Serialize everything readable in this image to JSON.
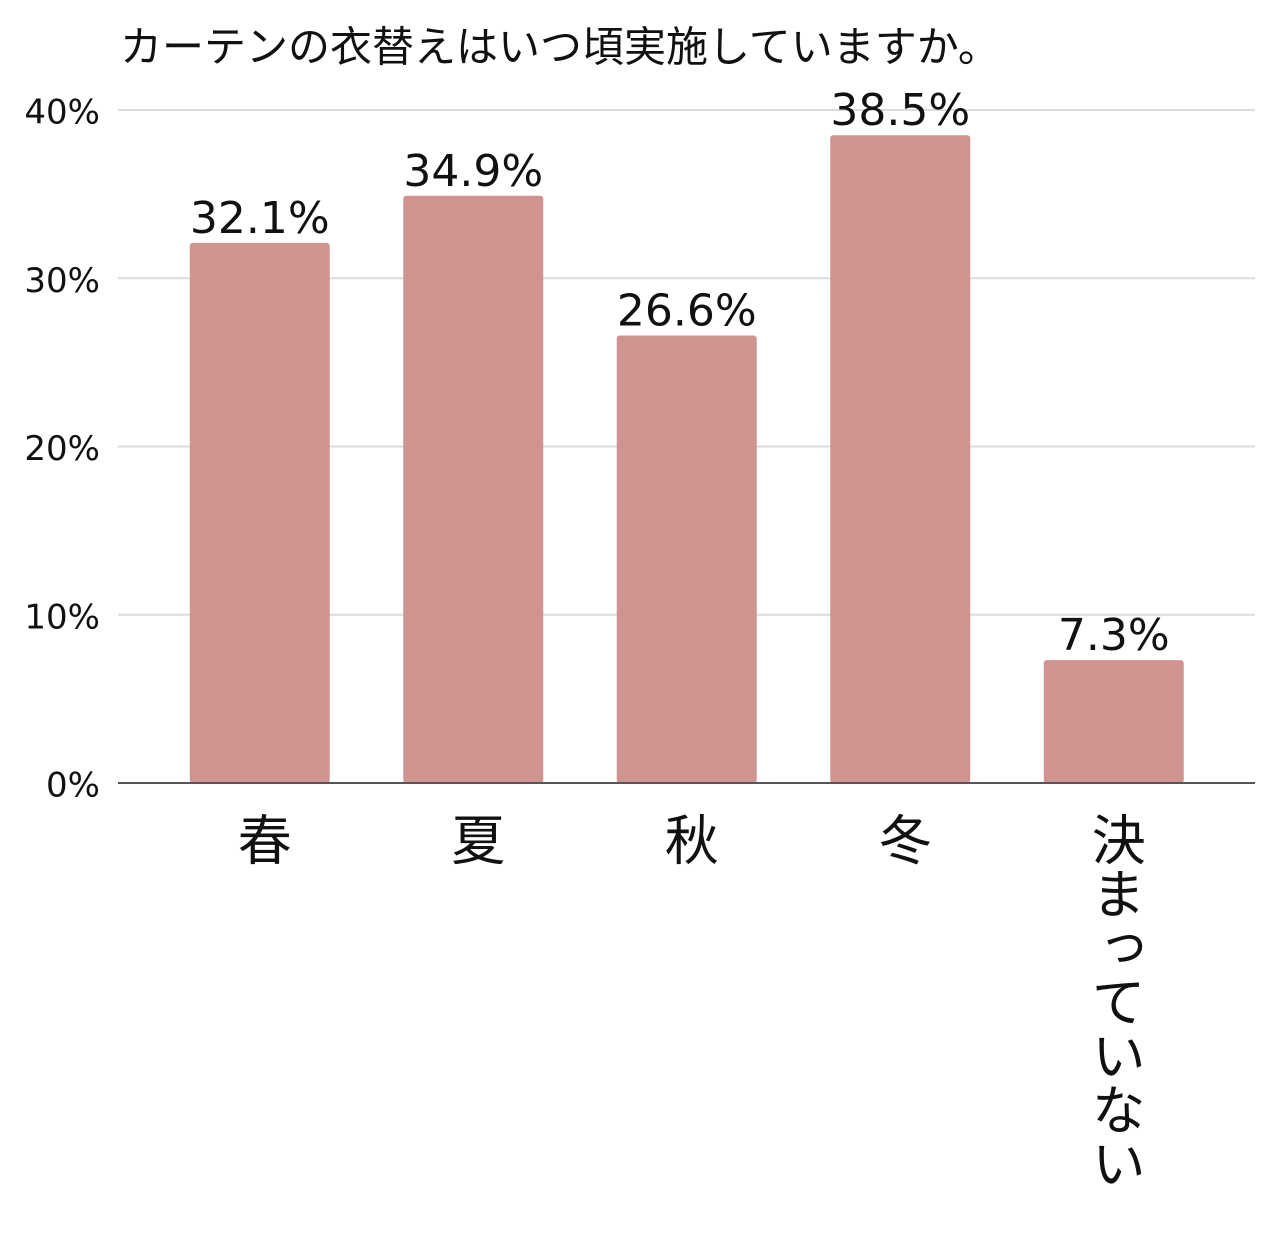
{
  "chart_data": {
    "type": "bar",
    "title": "カーテンの衣替えはいつ頃実施していますか。",
    "categories": [
      "春",
      "夏",
      "秋",
      "冬",
      "決まっていない"
    ],
    "values": [
      32.1,
      34.9,
      26.6,
      38.5,
      7.3
    ],
    "value_labels": [
      "32.1%",
      "34.9%",
      "26.6%",
      "38.5%",
      "7.3%"
    ],
    "color": "#cf9490",
    "ylim": [
      0,
      40
    ],
    "yticks": [
      {
        "value": 0,
        "label": "0%"
      },
      {
        "value": 10,
        "label": "10%"
      },
      {
        "value": 20,
        "label": "20%"
      },
      {
        "value": 30,
        "label": "30%"
      },
      {
        "value": 40,
        "label": "40%"
      }
    ],
    "grid": true
  }
}
